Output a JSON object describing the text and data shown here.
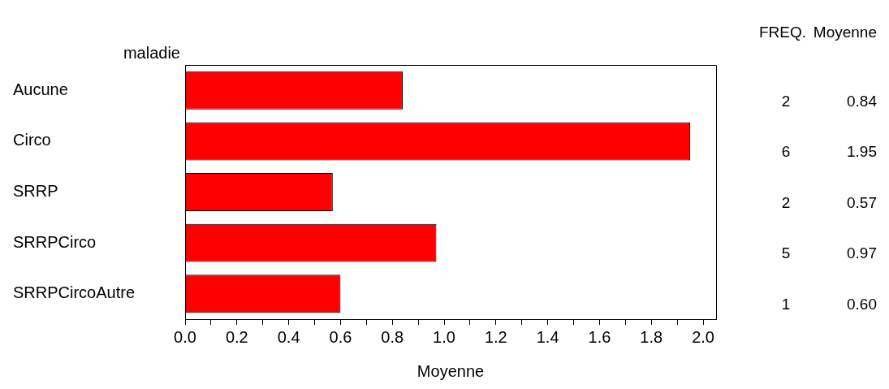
{
  "chart_data": {
    "type": "bar",
    "orientation": "horizontal",
    "xlabel": "Moyenne",
    "ylabel": "maladie",
    "categories": [
      "Aucune",
      "Circo",
      "SRRP",
      "SRRPCirco",
      "SRRPCircoAutre"
    ],
    "values": [
      0.84,
      1.95,
      0.57,
      0.97,
      0.6
    ],
    "value_labels": [
      "0.84",
      "1.95",
      "0.57",
      "0.97",
      "0.60"
    ],
    "color": "#ff0000",
    "xlim": [
      0,
      2.05
    ],
    "xticks": [
      {
        "value": 0,
        "label": "0.0"
      },
      {
        "value": 0.1,
        "label": null
      },
      {
        "value": 0.2,
        "label": "0.2"
      },
      {
        "value": 0.3,
        "label": null
      },
      {
        "value": 0.4,
        "label": "0.4"
      },
      {
        "value": 0.5,
        "label": null
      },
      {
        "value": 0.6,
        "label": "0.6"
      },
      {
        "value": 0.7,
        "label": null
      },
      {
        "value": 0.8,
        "label": "0.8"
      },
      {
        "value": 0.9,
        "label": null
      },
      {
        "value": 1.0,
        "label": "1.0"
      },
      {
        "value": 1.1,
        "label": null
      },
      {
        "value": 1.2,
        "label": "1.2"
      },
      {
        "value": 1.3,
        "label": null
      },
      {
        "value": 1.4,
        "label": "1.4"
      },
      {
        "value": 1.5,
        "label": null
      },
      {
        "value": 1.6,
        "label": "1.6"
      },
      {
        "value": 1.7,
        "label": null
      },
      {
        "value": 1.8,
        "label": "1.8"
      },
      {
        "value": 1.9,
        "label": null
      },
      {
        "value": 2.0,
        "label": "2.0"
      }
    ],
    "annotations": [
      "FREQ.",
      "Moyenne",
      "2",
      "6",
      "2",
      "5",
      "1"
    ],
    "grid": false,
    "legend": false
  }
}
